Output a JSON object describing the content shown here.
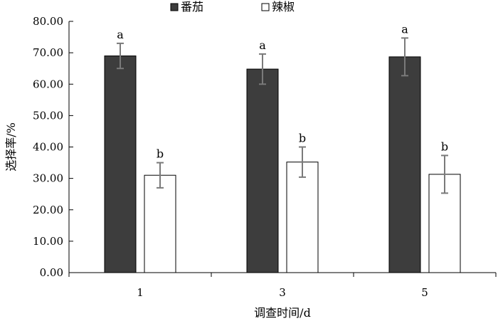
{
  "chart_data": {
    "type": "bar",
    "categories": [
      "1",
      "3",
      "5"
    ],
    "series": [
      {
        "name": "番茄",
        "color": "#3d3d3d",
        "values": [
          69.0,
          64.8,
          68.7
        ],
        "errors": [
          4.0,
          4.8,
          6.0
        ],
        "labels": [
          "a",
          "a",
          "a"
        ]
      },
      {
        "name": "辣椒",
        "color": "#ffffff",
        "values": [
          31.0,
          35.2,
          31.3
        ],
        "errors": [
          4.0,
          4.8,
          6.0
        ],
        "labels": [
          "b",
          "b",
          "b"
        ]
      }
    ],
    "xlabel": "调查时间/d",
    "ylabel": "选择率/%",
    "ylim": [
      0,
      80
    ],
    "yticks": [
      "0.00",
      "10.00",
      "20.00",
      "30.00",
      "40.00",
      "50.00",
      "60.00",
      "70.00",
      "80.00"
    ],
    "grid": false,
    "legend_position": "top-center"
  }
}
